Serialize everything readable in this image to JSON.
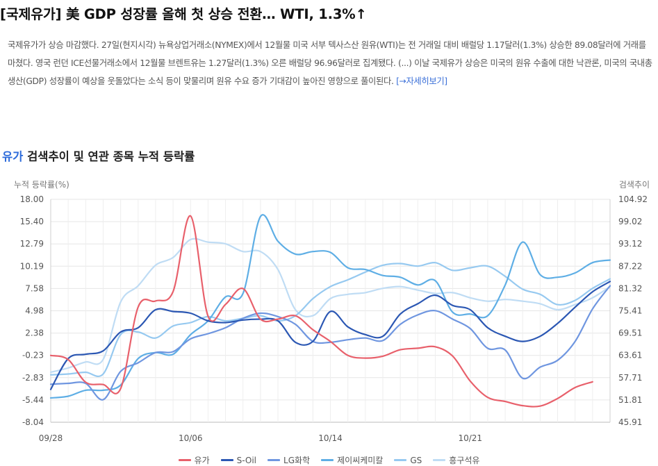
{
  "headline": "[국제유가] 美 GDP 성장률 올해 첫 상승 전환… WTI, 1.3%↑",
  "article": {
    "body": "국제유가가 상승 마감했다. 27일(현지시각) 뉴욕상업거래소(NYMEX)에서 12월물 미국 서부 텍사스산 원유(WTI)는 전 거래일 대비 배럴당 1.17달러(1.3%) 상승한 89.08달러에 거래를 마쳤다. 영국 런던 ICE선물거래소에서 12월물 브렌트유는 1.27달러(1.3%) 오른 배럴당 96.96달러로 집계됐다. (...) 이날 국제유가 상승은 미국의 원유 수출에 대한 낙관론, 미국의 국내총생산(GDP) 성장률이 예상을 웃돌았다는 소식 등이 맞물리며 원유 수요 증가 기대감이 높아진 영향으로 풀이된다. ",
    "more_link": "[→자세히보기]"
  },
  "section": {
    "keyword": "유가",
    "title_rest": " 검색추이 및 연관 종목 누적 등락률"
  },
  "colors": {
    "accent": "#2e6cdb",
    "유가": "#e8606b",
    "S-Oil": "#2b57b3",
    "LG화학": "#6f96e0",
    "제이씨케미칼": "#5eaee5",
    "GS": "#96c9f0",
    "흥구석유": "#bfdcf4"
  },
  "chart_data": {
    "type": "line",
    "title": "",
    "ylabel_left": "누적 등락률(%)",
    "ylabel_right": "검색추이",
    "ylim_left": [
      -8.04,
      18.0
    ],
    "ylim_right": [
      45.91,
      104.92
    ],
    "yticks_left": [
      "18.00",
      "15.40",
      "12.79",
      "10.19",
      "7.58",
      "4.98",
      "2.38",
      "-0.23",
      "-2.83",
      "-5.44",
      "-8.04"
    ],
    "yticks_right": [
      "104.92",
      "99.02",
      "93.12",
      "87.22",
      "81.32",
      "75.41",
      "69.51",
      "63.61",
      "57.71",
      "51.81",
      "45.91"
    ],
    "x": [
      "09/28",
      "09/29",
      "09/30",
      "10/01",
      "10/02",
      "10/03",
      "10/04",
      "10/05",
      "10/06",
      "10/07",
      "10/08",
      "10/09",
      "10/10",
      "10/11",
      "10/12",
      "10/13",
      "10/14",
      "10/15",
      "10/16",
      "10/17",
      "10/18",
      "10/19",
      "10/20",
      "10/21",
      "10/22",
      "10/23",
      "10/24",
      "10/25",
      "10/26",
      "10/27",
      "10/28",
      "10/29",
      "10/30"
    ],
    "xtick_labels": [
      "09/28",
      "10/06",
      "10/14",
      "10/21"
    ],
    "xtick_index": [
      0,
      8,
      16,
      24
    ],
    "grid": true,
    "series": [
      {
        "name": "유가",
        "axis": "right",
        "values": [
          63.6,
          62.5,
          56.5,
          55.9,
          54.8,
          76.4,
          78.0,
          80.5,
          100.5,
          74.0,
          77.1,
          81.3,
          73.2,
          73.2,
          74.1,
          70.4,
          67.3,
          63.6,
          62.9,
          63.4,
          65.1,
          65.5,
          65.9,
          63.4,
          56.8,
          52.5,
          51.4,
          50.3,
          50.2,
          52.2,
          55.1,
          56.6,
          null
        ]
      },
      {
        "name": "S-Oil",
        "axis": "left",
        "values": [
          -4.2,
          -0.6,
          -0.1,
          0.3,
          2.5,
          3.0,
          5.1,
          4.9,
          4.7,
          3.8,
          3.6,
          3.9,
          4.0,
          3.8,
          1.3,
          1.4,
          4.9,
          3.1,
          2.2,
          2.0,
          4.6,
          5.8,
          6.8,
          5.6,
          5.1,
          3.0,
          2.0,
          1.4,
          2.0,
          3.5,
          5.4,
          7.2,
          8.4
        ]
      },
      {
        "name": "LG화학",
        "axis": "left",
        "values": [
          -3.6,
          -3.5,
          -3.5,
          -5.4,
          -2.1,
          -1.1,
          0.1,
          0.2,
          1.7,
          2.3,
          3.0,
          4.1,
          4.7,
          4.3,
          3.4,
          1.4,
          1.3,
          1.6,
          1.8,
          1.5,
          3.4,
          4.5,
          5.0,
          4.0,
          2.9,
          0.6,
          0.4,
          -2.9,
          -1.6,
          -0.8,
          1.4,
          5.2,
          7.9
        ]
      },
      {
        "name": "제이씨케미칼",
        "axis": "left",
        "values": [
          -5.2,
          -5.0,
          -4.3,
          -4.3,
          -3.7,
          -0.6,
          0.1,
          -0.1,
          2.2,
          3.8,
          6.6,
          7.0,
          16.0,
          13.1,
          11.6,
          11.9,
          11.8,
          10.0,
          9.8,
          9.1,
          8.9,
          8.0,
          8.5,
          4.8,
          4.6,
          4.4,
          8.0,
          13.0,
          9.2,
          8.9,
          9.4,
          10.6,
          10.9
        ]
      },
      {
        "name": "GS",
        "axis": "left",
        "values": [
          -2.5,
          -2.4,
          -2.2,
          -2.4,
          2.2,
          2.5,
          1.8,
          3.2,
          3.6,
          4.3,
          3.8,
          4.1,
          4.4,
          3.8,
          4.4,
          6.4,
          7.8,
          8.6,
          9.5,
          10.3,
          10.5,
          10.2,
          10.6,
          9.7,
          10.0,
          10.2,
          9.0,
          7.5,
          6.9,
          5.7,
          6.2,
          7.6,
          8.7
        ]
      },
      {
        "name": "흥구석유",
        "axis": "left",
        "values": [
          -2.2,
          -1.7,
          -1.0,
          -0.7,
          6.0,
          7.9,
          10.3,
          11.2,
          13.3,
          13.0,
          12.8,
          11.9,
          11.9,
          9.8,
          5.1,
          4.4,
          6.4,
          6.9,
          7.1,
          7.6,
          7.8,
          7.4,
          7.0,
          7.1,
          6.5,
          6.1,
          6.3,
          6.1,
          5.8,
          5.1,
          5.7,
          6.5,
          7.8
        ]
      }
    ]
  }
}
